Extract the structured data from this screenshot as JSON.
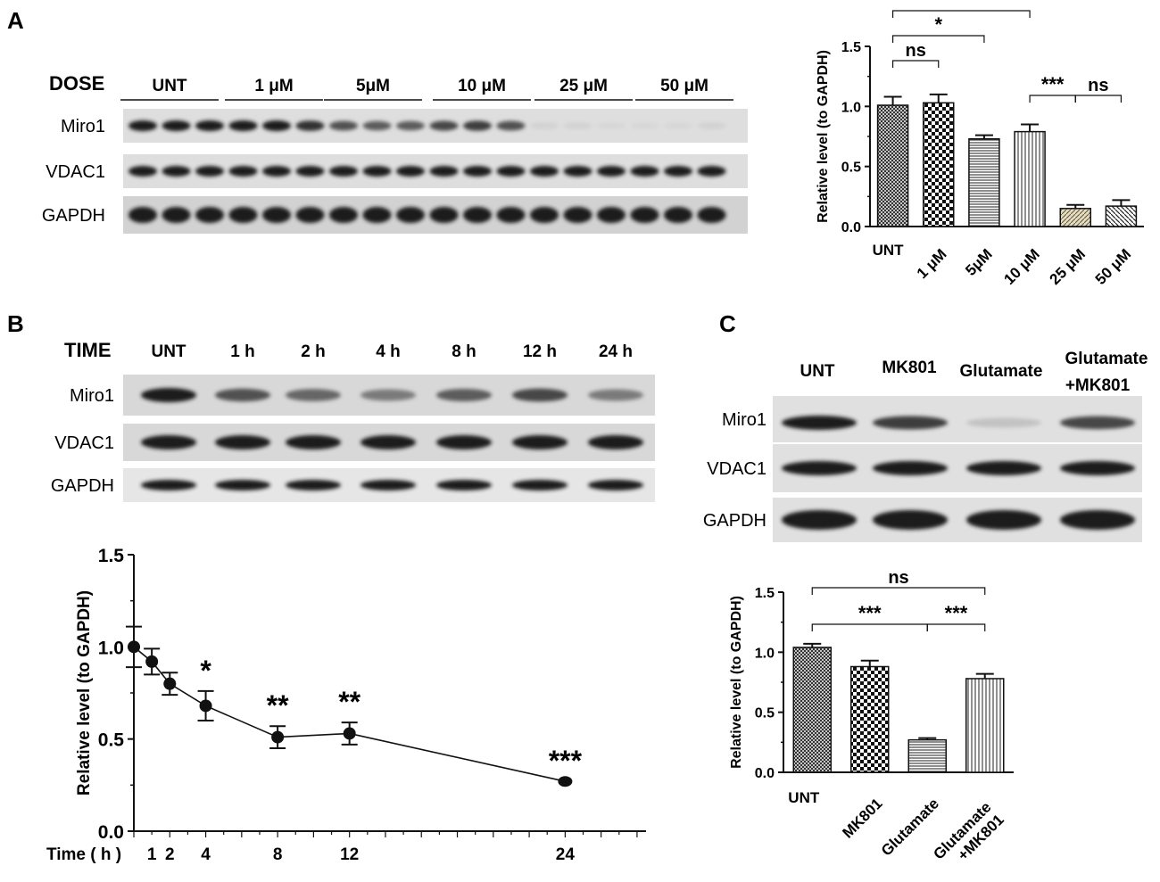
{
  "panel_letters": [
    "A",
    "B",
    "C"
  ],
  "blots": {
    "A": {
      "dose_label": "DOSE",
      "groups": [
        "UNT",
        "1 μM",
        "5μM",
        "10 μM",
        "25 μM",
        "50 μM"
      ],
      "proteins": [
        "Miro1",
        "VDAC1",
        "GAPDH"
      ],
      "lanes_per_group": 3,
      "miro1_levels": [
        1,
        1,
        1,
        1,
        1,
        0.9,
        0.75,
        0.7,
        0.7,
        0.8,
        0.85,
        0.75,
        0.12,
        0.12,
        0.1,
        0.1,
        0.1,
        0.12
      ]
    },
    "B": {
      "time_label": "TIME",
      "groups": [
        "UNT",
        "1 h",
        "2 h",
        "4 h",
        "8 h",
        "12 h",
        "24 h"
      ],
      "proteins": [
        "Miro1",
        "VDAC1",
        "GAPDH"
      ],
      "miro1_levels": [
        1,
        0.75,
        0.65,
        0.55,
        0.7,
        0.8,
        0.55
      ]
    },
    "C": {
      "groups": [
        "UNT",
        "MK801",
        "Glutamate",
        "Glutamate",
        "+MK801"
      ],
      "proteins": [
        "Miro1",
        "VDAC1",
        "GAPDH"
      ],
      "miro1_levels": [
        1,
        0.85,
        0.2,
        0.8
      ]
    }
  },
  "chart_data": [
    {
      "panel": "A",
      "type": "bar",
      "categories": [
        "UNT",
        "1 μM",
        "5μM",
        "10 μM",
        "25 μM",
        "50 μM"
      ],
      "values": [
        1.01,
        1.03,
        0.73,
        0.79,
        0.15,
        0.17
      ],
      "errors": [
        0.07,
        0.07,
        0.03,
        0.06,
        0.03,
        0.05
      ],
      "ylabel": "Relative  level (to GAPDH)",
      "ylim": [
        0,
        1.5
      ],
      "yticks": [
        "0.0",
        "0.5",
        "1.0",
        "1.5"
      ],
      "bar_fills": [
        "crosshatch",
        "checker",
        "hlines",
        "vlines",
        "tan-diag",
        "diag"
      ],
      "significance": [
        {
          "from": 0,
          "to": 1,
          "label": "ns"
        },
        {
          "from": 0,
          "to": 2,
          "label": "*"
        },
        {
          "from": 0,
          "to": 3,
          "label": "*"
        },
        {
          "from": 3,
          "to": 4,
          "label": "***"
        },
        {
          "from": 4,
          "to": 5,
          "label": "ns"
        }
      ]
    },
    {
      "panel": "B",
      "type": "line",
      "x": [
        0,
        1,
        2,
        4,
        8,
        12,
        24
      ],
      "y": [
        1.0,
        0.92,
        0.8,
        0.68,
        0.51,
        0.53,
        0.27
      ],
      "errors": [
        0.11,
        0.07,
        0.06,
        0.08,
        0.06,
        0.06,
        0.0
      ],
      "stars": [
        "",
        "",
        "",
        "*",
        "**",
        "**",
        "***"
      ],
      "xlabel": "Time ( h )",
      "xticks": [
        "1",
        "2",
        "4",
        "8",
        "12",
        "24"
      ],
      "ylabel": "Relative  level (to GAPDH)",
      "ylim": [
        0,
        1.5
      ],
      "yticks": [
        "0.0",
        "0.5",
        "1.0",
        "1.5"
      ]
    },
    {
      "panel": "C",
      "type": "bar",
      "categories": [
        "UNT",
        "MK801",
        "Glutamate",
        "Glutamate +MK801"
      ],
      "category_lines": [
        [
          "UNT"
        ],
        [
          "MK801"
        ],
        [
          "Glutamate"
        ],
        [
          "Glutamate",
          "+MK801"
        ]
      ],
      "values": [
        1.04,
        0.88,
        0.27,
        0.78
      ],
      "errors": [
        0.03,
        0.05,
        0.015,
        0.04
      ],
      "ylabel": "Relative  level (to GAPDH)",
      "ylim": [
        0,
        1.5
      ],
      "yticks": [
        "0.0",
        "0.5",
        "1.0",
        "1.5"
      ],
      "bar_fills": [
        "crosshatch",
        "checker",
        "hlines",
        "vlines"
      ],
      "significance": [
        {
          "from": 0,
          "to": 2,
          "label": "***"
        },
        {
          "from": 2,
          "to": 3,
          "label": "***"
        },
        {
          "from": 0,
          "to": 3,
          "label": "ns"
        }
      ]
    }
  ]
}
